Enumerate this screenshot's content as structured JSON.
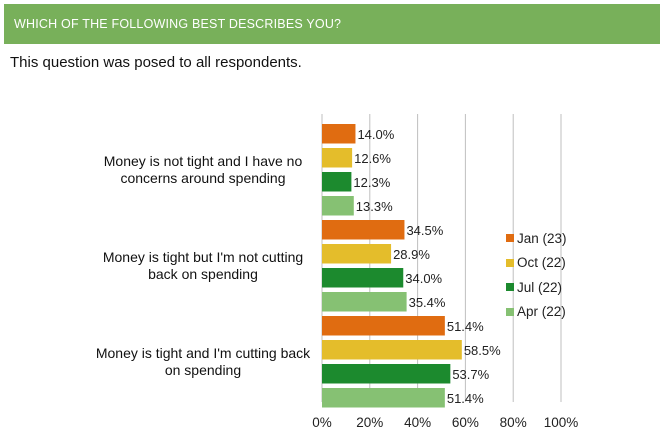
{
  "header": {
    "title": "WHICH OF THE FOLLOWING BEST DESCRIBES YOU?"
  },
  "subtitle": "This question was posed to all respondents.",
  "chart_data": {
    "type": "bar",
    "orientation": "horizontal",
    "categories": [
      "Money is not tight and I have no concerns around spending",
      "Money is tight but I'm not cutting back on spending",
      "Money is tight and I'm cutting back on spending"
    ],
    "category_lines": [
      [
        "Money is not tight and I have no",
        "concerns around spending"
      ],
      [
        "Money is tight but I'm not cutting",
        "back on spending"
      ],
      [
        "Money is tight and I'm cutting back",
        "on spending"
      ]
    ],
    "series": [
      {
        "name": "Jan (23)",
        "color": "#e06c11",
        "values": [
          14.0,
          34.5,
          51.4
        ]
      },
      {
        "name": "Oct (22)",
        "color": "#e4bd2b",
        "values": [
          12.6,
          28.9,
          58.5
        ]
      },
      {
        "name": "Jul (22)",
        "color": "#1c8a2e",
        "values": [
          12.3,
          34.0,
          53.7
        ]
      },
      {
        "name": "Apr (22)",
        "color": "#86c173",
        "values": [
          13.3,
          35.4,
          51.4
        ]
      }
    ],
    "value_labels": [
      [
        "14.0%",
        "34.5%",
        "51.4%"
      ],
      [
        "12.6%",
        "28.9%",
        "58.5%"
      ],
      [
        "12.3%",
        "34.0%",
        "53.7%"
      ],
      [
        "13.3%",
        "35.4%",
        "51.4%"
      ]
    ],
    "xlim": [
      0,
      100
    ],
    "xticks": [
      "0%",
      "20%",
      "40%",
      "60%",
      "80%",
      "100%"
    ],
    "grid": true,
    "legend": "right"
  }
}
